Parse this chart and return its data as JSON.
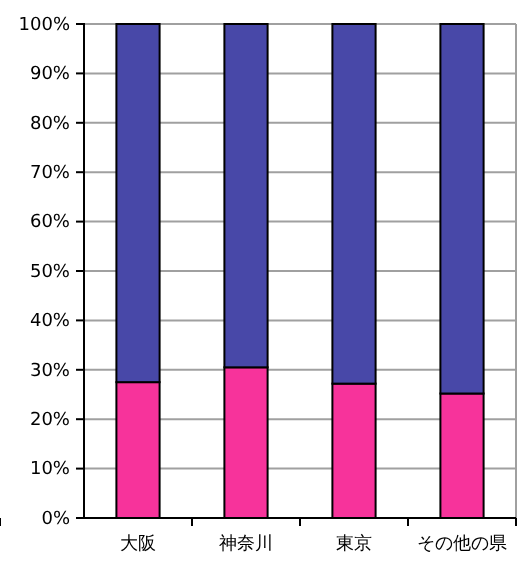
{
  "chart_data": {
    "type": "bar",
    "stacked": true,
    "categories": [
      "大阪",
      "神奈川",
      "東京",
      "その他の県"
    ],
    "series": [
      {
        "color": "#f7339b",
        "values": [
          27.5,
          30.5,
          27.2,
          25.2
        ]
      },
      {
        "color": "#4848a8",
        "values": [
          72.5,
          69.5,
          72.8,
          74.8
        ]
      }
    ],
    "ylim": [
      0,
      100
    ],
    "yticks": [
      {
        "value": 0,
        "label": "0%"
      },
      {
        "value": 10,
        "label": "10%"
      },
      {
        "value": 20,
        "label": "20%"
      },
      {
        "value": 30,
        "label": "30%"
      },
      {
        "value": 40,
        "label": "40%"
      },
      {
        "value": 50,
        "label": "50%"
      },
      {
        "value": 60,
        "label": "60%"
      },
      {
        "value": 70,
        "label": "70%"
      },
      {
        "value": 80,
        "label": "80%"
      },
      {
        "value": 90,
        "label": "90%"
      },
      {
        "value": 100,
        "label": "100%"
      }
    ],
    "grid": "y"
  }
}
